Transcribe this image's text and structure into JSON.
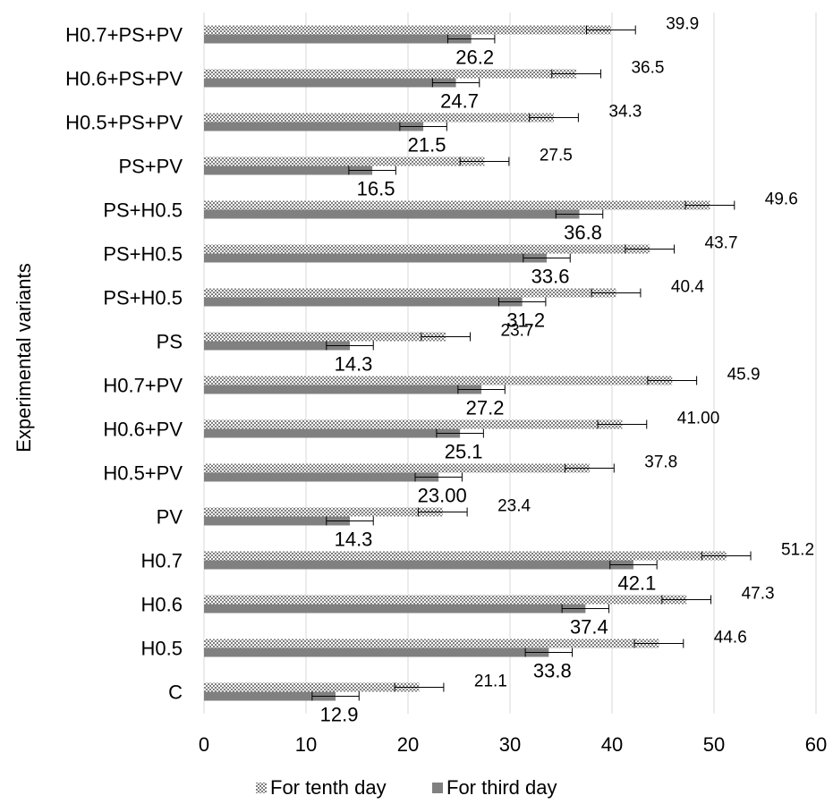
{
  "chart_data": {
    "type": "bar",
    "orientation": "horizontal",
    "ylabel": "Experimental variants",
    "xlabel": "",
    "xlim": [
      0,
      60
    ],
    "x_ticks": [
      "0",
      "10",
      "20",
      "30",
      "40",
      "50",
      "60"
    ],
    "grid": "vertical",
    "legend_position": "bottom",
    "categories": [
      "H0.7+PS+PV",
      "H0.6+PS+PV",
      "H0.5+PS+PV",
      "PS+PV",
      "PS+H0.5",
      "PS+H0.5",
      "PS+H0.5",
      "PS",
      "H0.7+PV",
      "H0.6+PV",
      "H0.5+PV",
      "PV",
      "H0.7",
      "H0.6",
      "H0.5",
      "C"
    ],
    "series": [
      {
        "name": "For tenth day",
        "pattern": "crosshatch",
        "color": "#7f7f7f",
        "values": [
          39.9,
          36.5,
          34.3,
          27.5,
          49.6,
          43.7,
          40.4,
          23.7,
          45.9,
          41.0,
          37.8,
          23.4,
          51.2,
          47.3,
          44.6,
          21.1
        ],
        "labels": [
          "39.9",
          "36.5",
          "34.3",
          "27.5",
          "49.6",
          "43.7",
          "40.4",
          "23.7",
          "45.9",
          "41.00",
          "37.8",
          "23.4",
          "51.2",
          "47.3",
          "44.6",
          "21.1"
        ],
        "error": 2.4
      },
      {
        "name": "For third day",
        "pattern": "solid",
        "color": "#808080",
        "values": [
          26.2,
          24.7,
          21.5,
          16.5,
          36.8,
          33.6,
          31.2,
          14.3,
          27.2,
          25.1,
          23.0,
          14.3,
          42.1,
          37.4,
          33.8,
          12.9
        ],
        "labels": [
          "26.2",
          "24.7",
          "21.5",
          "16.5",
          "36.8",
          "33.6",
          "31.2",
          "14.3",
          "27.2",
          "25.1",
          "23.00",
          "14.3",
          "42.1",
          "37.4",
          "33.8",
          "12.9"
        ],
        "error": 2.3
      }
    ]
  }
}
